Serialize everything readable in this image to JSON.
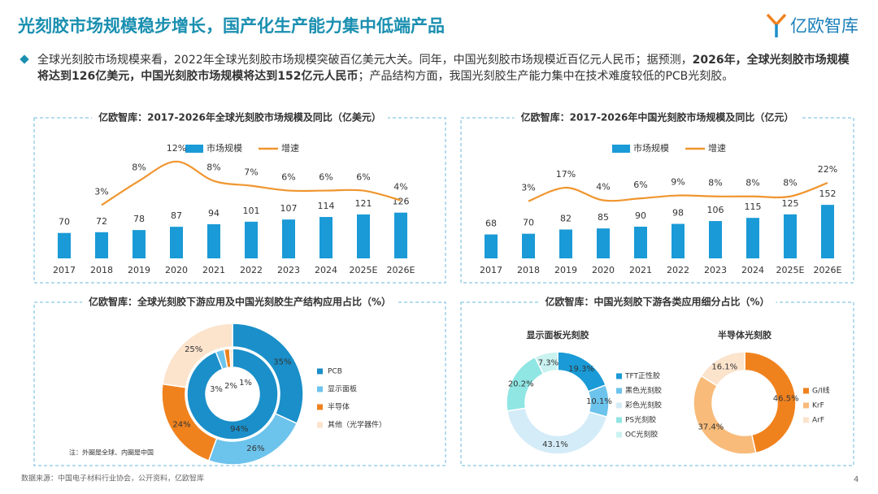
{
  "title": "光刻胶市场规模稳步增长，国产化生产能力集中低端产品",
  "logo": "亿欧智库",
  "bullet": [
    "全球光刻胶市场规模来看，2022年全球光刻胶市场规模突破百亿美元大关。同年，中国光刻胶市场规模近百亿元人民币；据预测，",
    "2026年，全球光刻胶市场规模将达到126亿美元，中国光刻胶市场规模将达到152亿元人民币",
    "；产品结构方面，我国光刻胶生产能力集中在技术难度较低的PCB光刻胶。"
  ],
  "source": "数据来源：中国电子材料行业协会，公开资料，亿欧智库",
  "page": "4",
  "chart_data": [
    {
      "type": "combo",
      "title": "亿欧智库：2017-2026年全球光刻胶市场规模及同比（亿美元）",
      "categories": [
        "2017",
        "2018",
        "2019",
        "2020",
        "2021",
        "2022",
        "2023",
        "2024",
        "2025E",
        "2026E"
      ],
      "series": [
        {
          "name": "市场规模",
          "color": "#1a9ad6",
          "values": [
            70,
            72,
            78,
            87,
            94,
            101,
            107,
            114,
            121,
            126
          ]
        },
        {
          "name": "增速",
          "color": "#f0952e",
          "axis": "y2",
          "values": [
            null,
            3,
            8,
            12,
            8,
            7,
            6,
            6,
            6,
            4
          ],
          "value_labels": [
            null,
            "3%",
            "8%",
            "12%",
            "8%",
            "7%",
            "6%",
            "6%",
            "6%",
            "4%"
          ]
        }
      ],
      "ylim": [
        0,
        320
      ],
      "y2lim": [
        -8,
        16
      ]
    },
    {
      "type": "combo",
      "title": "亿欧智库：2017-2026年中国光刻胶市场规模及同比（亿元）",
      "categories": [
        "2017",
        "2018",
        "2019",
        "2020",
        "2021",
        "2022",
        "2023",
        "2024",
        "2025E",
        "2026E"
      ],
      "series": [
        {
          "name": "市场规模",
          "color": "#1a9ad6",
          "values": [
            68,
            70,
            82,
            85,
            90,
            98,
            106,
            115,
            125,
            152
          ]
        },
        {
          "name": "增速",
          "color": "#f0952e",
          "axis": "y2",
          "values": [
            null,
            3,
            17,
            4,
            6,
            9,
            8,
            8,
            8,
            22
          ],
          "value_labels": [
            null,
            "3%",
            "17%",
            "4%",
            "6%",
            "9%",
            "8%",
            "8%",
            "8%",
            "22%"
          ]
        }
      ],
      "ylim": [
        0,
        330
      ],
      "y2lim": [
        -56,
        64
      ]
    },
    {
      "type": "donut",
      "title": "亿欧智库：全球光刻胶下游应用及中国光刻胶生产结构应用占比（%）",
      "categories": [
        "PCB",
        "显示面板",
        "半导体",
        "其他（光学器件）"
      ],
      "colors": [
        "#1a8fc9",
        "#6cc3ec",
        "#f0821e",
        "#fbe3cc"
      ],
      "rings": [
        {
          "values": [
            35,
            26,
            24,
            25
          ],
          "value_labels": [
            "35%",
            "26%",
            "24%",
            "25%"
          ]
        },
        {
          "values": [
            94,
            3,
            2,
            1
          ],
          "value_labels": [
            "94%",
            "3%",
            "2%",
            "1%"
          ]
        }
      ],
      "note": "注：外圈是全球、内圈是中国"
    },
    {
      "type": "donuts",
      "title": "亿欧智库：中国光刻胶下游各类应用细分占比（%）",
      "pies": [
        {
          "title": "显示面板光刻胶",
          "categories": [
            "TFT正性胶",
            "黑色光刻胶",
            "彩色光刻胶",
            "PS光刻胶",
            "OC光刻胶"
          ],
          "colors": [
            "#1a9ad6",
            "#6cc3ec",
            "#d4ecf8",
            "#8fe6e3",
            "#c9f2f0"
          ],
          "values": [
            19.3,
            10.1,
            43.1,
            20.2,
            7.3
          ],
          "value_labels": [
            "19.3%",
            "10.1%",
            "43.1%",
            "20.2%",
            "7.3%"
          ]
        },
        {
          "title": "半导体光刻胶",
          "categories": [
            "G/I线",
            "KrF",
            "ArF"
          ],
          "colors": [
            "#f0821e",
            "#f8bb7a",
            "#fbe3cc"
          ],
          "values": [
            46.5,
            37.4,
            16.1
          ],
          "value_labels": [
            "46.5%",
            "37.4%",
            "16.1%"
          ]
        }
      ]
    }
  ]
}
